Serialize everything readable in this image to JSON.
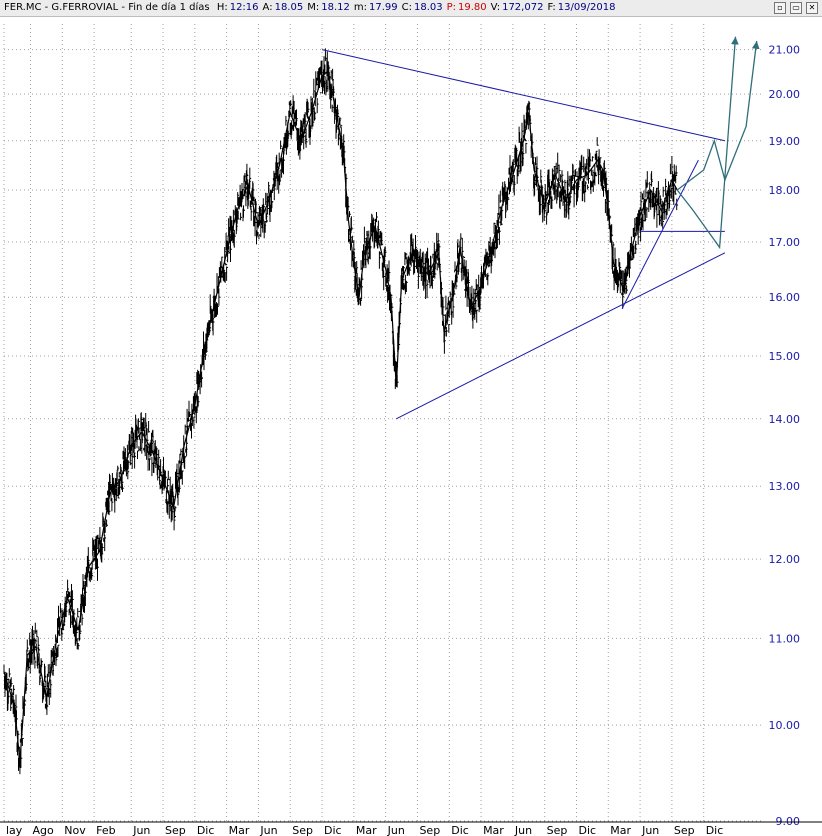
{
  "header": {
    "symbol": "FER.MC",
    "name": "G.FERROVIAL",
    "period": "Fin de día 1 días",
    "fields": [
      {
        "label": "H:",
        "value": "12:16",
        "color": "#000080"
      },
      {
        "label": "A:",
        "value": "18.05",
        "color": "#000080"
      },
      {
        "label": "M:",
        "value": "18.12",
        "color": "#000080"
      },
      {
        "label": "m:",
        "value": "17.99",
        "color": "#000080"
      },
      {
        "label": "C:",
        "value": "18.03",
        "color": "#000080"
      },
      {
        "label": "P:",
        "value": "19.80",
        "color": "#cc0000"
      },
      {
        "label": "V:",
        "value": "172,072",
        "color": "#000080"
      },
      {
        "label": "F:",
        "value": "13/09/2018",
        "color": "#000080"
      }
    ],
    "window_controls": [
      "▫",
      "▭",
      "✕"
    ]
  },
  "colors": {
    "price": "#000000",
    "trendline": "#1a1aa8",
    "projection": "#2f6f7a",
    "axis_text": "#1a1aa8",
    "grid": "#a0a0a0"
  },
  "chart_data": {
    "type": "line",
    "style": "ohlc-bars",
    "scale": "log",
    "ylim": [
      9.0,
      21.6
    ],
    "y_ticks": [
      9.0,
      10.0,
      11.0,
      12.0,
      13.0,
      14.0,
      15.0,
      16.0,
      17.0,
      18.0,
      19.0,
      20.0,
      21.0
    ],
    "y_tick_labels": [
      "9.00",
      "10.00",
      "11.00",
      "12.00",
      "13.00",
      "14.00",
      "15.00",
      "16.00",
      "17.00",
      "18.00",
      "19.00",
      "20.00",
      "21.00"
    ],
    "x_ticks": [
      "lay",
      "Ago",
      "Nov",
      "Feb",
      "Jun",
      "Sep",
      "Dic",
      "Mar",
      "Jun",
      "Sep",
      "Dic",
      "Mar",
      "Jun",
      "Sep",
      "Dic",
      "Mar",
      "Jun",
      "Sep",
      "Dic",
      "Mar",
      "Jun",
      "Sep",
      "Dic"
    ],
    "x_tick_months": [
      0,
      2.5,
      5.5,
      8.5,
      12,
      15,
      18,
      21,
      24,
      27,
      30,
      33,
      36,
      39,
      42,
      45,
      48,
      51,
      54,
      57,
      60,
      63,
      66
    ],
    "xlim_months": [
      0,
      71.5
    ],
    "grid": true,
    "series": [
      {
        "style": "ohlc-bars",
        "points": [
          [
            0,
            10.6
          ],
          [
            1,
            10.2
          ],
          [
            1.5,
            9.6
          ],
          [
            2.2,
            10.8
          ],
          [
            3,
            10.9
          ],
          [
            4,
            10.3
          ],
          [
            5,
            11.0
          ],
          [
            6,
            11.5
          ],
          [
            7,
            11.1
          ],
          [
            8,
            11.9
          ],
          [
            9,
            12.1
          ],
          [
            10,
            12.9
          ],
          [
            11,
            13.1
          ],
          [
            12,
            13.6
          ],
          [
            13,
            13.8
          ],
          [
            14,
            13.5
          ],
          [
            15,
            13.1
          ],
          [
            16,
            12.7
          ],
          [
            17,
            13.6
          ],
          [
            18,
            14.2
          ],
          [
            19,
            15.2
          ],
          [
            20,
            16.0
          ],
          [
            21,
            16.8
          ],
          [
            22,
            17.6
          ],
          [
            23,
            18.1
          ],
          [
            24,
            17.3
          ],
          [
            25,
            17.8
          ],
          [
            26,
            18.5
          ],
          [
            27,
            19.6
          ],
          [
            28,
            19.0
          ],
          [
            29,
            19.6
          ],
          [
            30,
            20.4
          ],
          [
            30.5,
            20.5
          ],
          [
            31,
            20.0
          ],
          [
            32,
            18.8
          ],
          [
            32.5,
            17.4
          ],
          [
            33,
            16.6
          ],
          [
            33.5,
            16.0
          ],
          [
            34,
            16.8
          ],
          [
            35,
            17.3
          ],
          [
            36,
            16.5
          ],
          [
            36.5,
            16.0
          ],
          [
            37,
            14.5
          ],
          [
            37.5,
            16.3
          ],
          [
            38.5,
            16.8
          ],
          [
            40,
            16.4
          ],
          [
            41,
            16.8
          ],
          [
            41.5,
            15.4
          ],
          [
            42.5,
            16.2
          ],
          [
            43,
            16.9
          ],
          [
            44,
            15.8
          ],
          [
            45,
            16.2
          ],
          [
            46,
            16.9
          ],
          [
            47,
            17.7
          ],
          [
            48,
            18.3
          ],
          [
            49,
            19.0
          ],
          [
            49.5,
            19.6
          ],
          [
            50,
            18.4
          ],
          [
            51,
            17.7
          ],
          [
            52,
            18.3
          ],
          [
            53,
            17.8
          ],
          [
            54,
            18.2
          ],
          [
            55,
            18.3
          ],
          [
            56,
            18.6
          ],
          [
            56.5,
            18.4
          ],
          [
            57,
            17.6
          ],
          [
            57.5,
            16.6
          ],
          [
            58.5,
            16.1
          ],
          [
            59,
            16.7
          ],
          [
            60,
            17.5
          ],
          [
            61,
            18.0
          ],
          [
            62,
            17.6
          ],
          [
            63,
            18.2
          ],
          [
            63.5,
            18.0
          ]
        ]
      }
    ],
    "trendlines": [
      {
        "from": [
          30,
          21.0
        ],
        "to": [
          68,
          19.0
        ]
      },
      {
        "from": [
          37,
          14.0
        ],
        "to": [
          68,
          16.8
        ]
      },
      {
        "from": [
          58.3,
          15.8
        ],
        "to": [
          65.5,
          18.6
        ]
      },
      {
        "from": [
          60,
          17.2
        ],
        "to": [
          68,
          17.2
        ]
      }
    ],
    "projection_paths": [
      [
        [
          63.5,
          18.0
        ],
        [
          65,
          17.6
        ],
        [
          67.5,
          16.9
        ],
        [
          69,
          21.3
        ]
      ],
      [
        [
          63.5,
          18.0
        ],
        [
          66,
          18.4
        ],
        [
          67,
          19.0
        ],
        [
          68,
          18.2
        ],
        [
          70,
          19.3
        ],
        [
          71,
          21.2
        ]
      ]
    ]
  }
}
